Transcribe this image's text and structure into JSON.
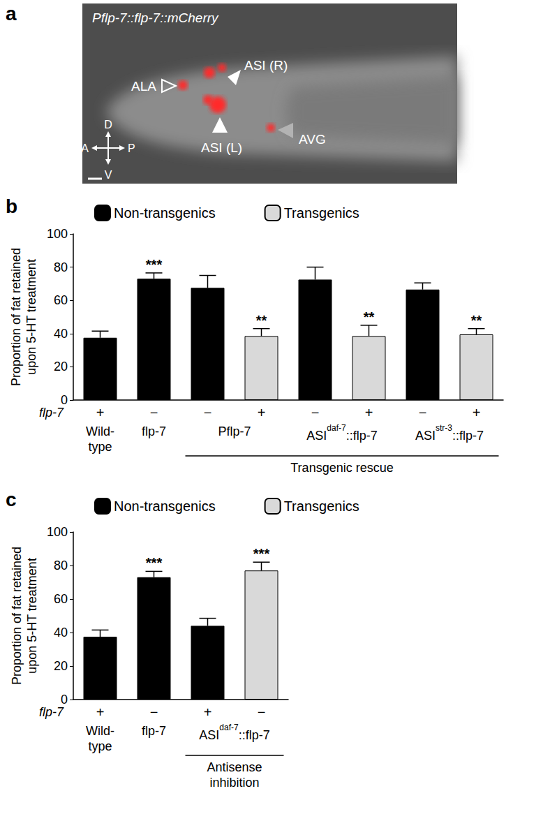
{
  "panels": [
    "a",
    "b",
    "c"
  ],
  "image_panel": {
    "title": "Pflp-7::flp-7::mCherry",
    "labels": [
      "ALA",
      "ASI (R)",
      "ASI (L)",
      "AVG"
    ],
    "compass": {
      "up": "D",
      "down": "V",
      "left": "A",
      "right": "P"
    }
  },
  "chart_data": [
    {
      "type": "bar",
      "categories": [
        "+",
        "−",
        "−",
        "+",
        "−",
        "+",
        "−",
        "+"
      ],
      "row_label": "flp-7",
      "group_labels": [
        {
          "text": "Wild-\ntype"
        },
        {
          "text": "flp-7"
        },
        {
          "text": "Pflp-7"
        },
        {
          "text": "Pflp-7"
        },
        {
          "text": "ASI",
          "sup": "daf-7",
          "after": "::flp-7"
        },
        {
          "text": "ASI",
          "sup": "daf-7",
          "after": "::flp-7"
        },
        {
          "text": "ASI",
          "sup": "str-3",
          "after": "::flp-7"
        },
        {
          "text": "ASI",
          "sup": "str-3",
          "after": "::flp-7"
        }
      ],
      "brackets": [
        null,
        null,
        "Transgenic rescue",
        "Transgenic rescue",
        "Transgenic rescue",
        "Transgenic rescue",
        "Transgenic rescue",
        "Transgenic rescue"
      ],
      "y_label": "Proportion of fat retained\nupon 5-HT treatment",
      "series": [
        {
          "name": "Non-transgenics",
          "color": "#000000",
          "values": [
            37.5,
            73,
            67.5,
            null,
            72.5,
            null,
            66.5,
            null
          ],
          "errors": [
            4,
            3.5,
            7.5,
            null,
            7.5,
            null,
            4,
            null
          ],
          "annotations": [
            null,
            "***",
            null,
            null,
            null,
            null,
            null,
            null
          ]
        },
        {
          "name": "Transgenics",
          "color": "#d9d9d9",
          "values": [
            null,
            null,
            null,
            38.5,
            null,
            38.5,
            null,
            39.5
          ],
          "errors": [
            null,
            null,
            null,
            4.5,
            null,
            6.5,
            null,
            3.5
          ],
          "annotations": [
            null,
            null,
            null,
            "**",
            null,
            "**",
            null,
            "**"
          ]
        }
      ],
      "ylim": [
        0,
        100
      ],
      "yticks": [
        0,
        20,
        40,
        60,
        80,
        100
      ],
      "grid": false,
      "legend": "top"
    },
    {
      "type": "bar",
      "categories": [
        "+",
        "−",
        "+",
        "−"
      ],
      "row_label": "flp-7",
      "group_labels": [
        {
          "text": "Wild-\ntype"
        },
        {
          "text": "flp-7"
        },
        {
          "text": "ASI",
          "sup": "daf-7",
          "after": "::flp-7"
        },
        {
          "text": "ASI",
          "sup": "daf-7",
          "after": "::flp-7"
        }
      ],
      "brackets": [
        null,
        null,
        "Antisense\ninhibition",
        "Antisense\ninhibition"
      ],
      "y_label": "Proportion of fat retained\nupon 5-HT treatment",
      "series": [
        {
          "name": "Non-transgenics",
          "color": "#000000",
          "values": [
            37.5,
            73,
            44,
            null
          ],
          "errors": [
            4,
            3.5,
            4.5,
            null
          ],
          "annotations": [
            null,
            "***",
            null,
            null
          ]
        },
        {
          "name": "Transgenics",
          "color": "#d9d9d9",
          "values": [
            null,
            null,
            null,
            77
          ],
          "errors": [
            null,
            null,
            null,
            5
          ],
          "annotations": [
            null,
            null,
            null,
            "***"
          ]
        }
      ],
      "ylim": [
        0,
        100
      ],
      "yticks": [
        0,
        20,
        40,
        60,
        80,
        100
      ],
      "grid": false,
      "legend": "top"
    }
  ]
}
